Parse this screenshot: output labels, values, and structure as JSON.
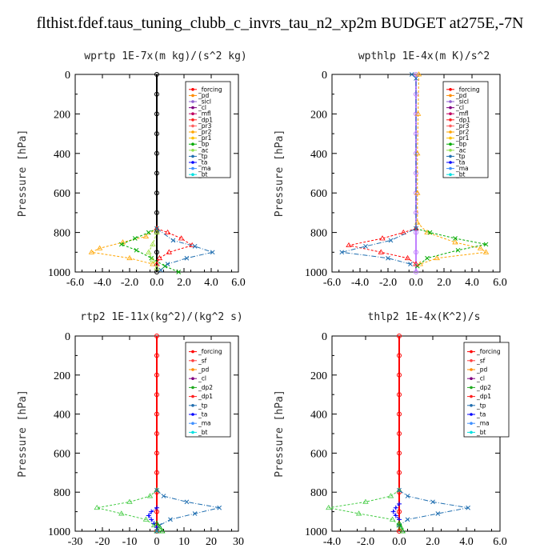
{
  "figure_title": "flthist.fdef.taus_tuning_clubb_c_invrs_tau_n2_xp2m  BUDGET at275E,-7N",
  "chart_data": [
    {
      "type": "line",
      "title": "wprtp  1E-7x(m kg)/(s^2 kg)",
      "ylabel": "Pressure [hPa]",
      "ylim": [
        1000,
        0
      ],
      "xlim": [
        -6,
        6
      ],
      "xticks": [
        "-6.0",
        "-4.0",
        "-2.0",
        "0.0",
        "2.0",
        "4.0",
        "6.0"
      ],
      "yticks": [
        "0",
        "200",
        "400",
        "600",
        "800",
        "1000"
      ],
      "legend": [
        "_forcing",
        "_pd",
        "_sicl",
        "_cl",
        "_mfl",
        "_dp1",
        "_pr3",
        "_pr2",
        "_pr1",
        "_bp",
        "_ac",
        "_tp",
        "_ta",
        "_ma",
        "_bt"
      ],
      "series": [
        {
          "name": "_forcing",
          "color": "#000000",
          "y": [
            0,
            100,
            200,
            300,
            400,
            500,
            600,
            700,
            800,
            900,
            1000
          ],
          "x": [
            0,
            0,
            0,
            0,
            0,
            0,
            0,
            0,
            0,
            0,
            0
          ]
        },
        {
          "name": "_pr1",
          "color": "#ffa500",
          "y": [
            780,
            820,
            850,
            880,
            900,
            930,
            960
          ],
          "x": [
            0,
            -0.8,
            -2.5,
            -4.2,
            -4.8,
            -2.0,
            -0.3
          ]
        },
        {
          "name": "_bp",
          "color": "#00aa00",
          "y": [
            780,
            800,
            830,
            860,
            890,
            930,
            970,
            1000
          ],
          "x": [
            0,
            -0.6,
            -1.6,
            -2.6,
            -1.5,
            -0.4,
            0.6,
            1.6
          ]
        },
        {
          "name": "_dp1",
          "color": "#ff0000",
          "y": [
            780,
            800,
            830,
            865,
            900,
            930,
            960
          ],
          "x": [
            0,
            0.8,
            1.8,
            2.6,
            0.9,
            0.2,
            0
          ]
        },
        {
          "name": "_tp",
          "color": "#1f6eb0",
          "y": [
            780,
            840,
            870,
            900,
            930,
            960,
            990
          ],
          "x": [
            0,
            1.2,
            2.8,
            4.1,
            2.2,
            0.8,
            0.3
          ]
        },
        {
          "name": "_ac",
          "color": "#a0e040",
          "y": [
            800,
            860,
            900,
            940,
            980
          ],
          "x": [
            0,
            -0.3,
            -0.6,
            -0.3,
            0
          ]
        }
      ]
    },
    {
      "type": "line",
      "title": "wpthlp  1E-4x(m K)/s^2",
      "ylabel": "Pressure [hPa]",
      "ylim": [
        1000,
        0
      ],
      "xlim": [
        -6,
        6
      ],
      "xticks": [
        "-6.0",
        "-4.0",
        "-2.0",
        "0.0",
        "2.0",
        "4.0",
        "6.0"
      ],
      "yticks": [
        "0",
        "200",
        "400",
        "600",
        "800",
        "1000"
      ],
      "legend": [
        "_forcing",
        "_pd",
        "_sicl",
        "_cl",
        "_mfl",
        "_dp1",
        "_pr3",
        "_pr2",
        "_pr1",
        "_bp",
        "_ac",
        "_tp",
        "_ta",
        "_ma",
        "_bt"
      ],
      "series": [
        {
          "name": "_forcing",
          "color": "#c080ff",
          "y": [
            0,
            100,
            200,
            300,
            400,
            500,
            600,
            700,
            800,
            900,
            1000
          ],
          "x": [
            0,
            0,
            0,
            0,
            0,
            0,
            0,
            0,
            0,
            0,
            0
          ]
        },
        {
          "name": "_pr1",
          "color": "#ffa500",
          "y": [
            0,
            200,
            400,
            600,
            750,
            800,
            850,
            880,
            900,
            930,
            960
          ],
          "x": [
            0.2,
            0.15,
            0.1,
            0.1,
            0.1,
            0.8,
            2.8,
            4.6,
            5.0,
            1.5,
            0.3
          ]
        },
        {
          "name": "_bp",
          "color": "#00aa00",
          "y": [
            780,
            800,
            830,
            860,
            890,
            930,
            970
          ],
          "x": [
            0,
            1.0,
            2.8,
            5.0,
            3.0,
            0.8,
            0.1
          ]
        },
        {
          "name": "_dp1",
          "color": "#ff0000",
          "y": [
            780,
            800,
            830,
            865,
            900,
            930,
            960
          ],
          "x": [
            0,
            -0.9,
            -2.4,
            -4.8,
            -2.5,
            -0.6,
            0
          ]
        },
        {
          "name": "_tp",
          "color": "#1f6eb0",
          "y": [
            0,
            20,
            780,
            840,
            870,
            900,
            930,
            960
          ],
          "x": [
            -0.3,
            0,
            0,
            -1.8,
            -3.6,
            -5.3,
            -2.0,
            -0.4
          ]
        }
      ]
    },
    {
      "type": "line",
      "title": "rtp2  1E-11x(kg^2)/(kg^2 s)",
      "ylabel": "Pressure [hPa]",
      "ylim": [
        1000,
        0
      ],
      "xlim": [
        -30,
        30
      ],
      "xticks": [
        "-30",
        "-20",
        "-10",
        "0",
        "10",
        "20",
        "30"
      ],
      "yticks": [
        "0",
        "200",
        "400",
        "600",
        "800",
        "1000"
      ],
      "legend": [
        "_forcing",
        "_sf",
        "_pd",
        "_cl",
        "_dp2",
        "_dp1",
        "_tp",
        "_ta",
        "_ma",
        "_bt"
      ],
      "series": [
        {
          "name": "_forcing",
          "color": "#ff0000",
          "y": [
            0,
            100,
            200,
            300,
            400,
            500,
            600,
            700,
            800,
            900,
            1000
          ],
          "x": [
            0,
            0,
            0,
            0,
            0,
            0,
            0,
            0,
            0,
            0,
            0
          ]
        },
        {
          "name": "_dp1",
          "color": "#44cc44",
          "y": [
            790,
            820,
            850,
            880,
            910,
            940,
            970,
            1000
          ],
          "x": [
            0,
            -2.5,
            -10,
            -22,
            -13,
            -4,
            -1,
            0
          ]
        },
        {
          "name": "_tp",
          "color": "#1f6eb0",
          "y": [
            790,
            820,
            850,
            880,
            910,
            940,
            970,
            1000
          ],
          "x": [
            0,
            2.5,
            11,
            23,
            14,
            5,
            1,
            0
          ]
        },
        {
          "name": "_ta",
          "color": "#0000ff",
          "y": [
            880,
            900,
            920,
            940,
            960,
            980
          ],
          "x": [
            0,
            -2,
            -3,
            -2,
            -1,
            0
          ]
        },
        {
          "name": "_dp2",
          "color": "#00aa00",
          "y": [
            960,
            980,
            1000
          ],
          "x": [
            0,
            1,
            2
          ]
        }
      ]
    },
    {
      "type": "line",
      "title": "thlp2  1E-4x(K^2)/s",
      "ylabel": "Pressure [hPa]",
      "ylim": [
        1000,
        0
      ],
      "xlim": [
        -4,
        6
      ],
      "xticks": [
        "-4.0",
        "-2.0",
        "0.0",
        "2.0",
        "4.0",
        "6.0"
      ],
      "yticks": [
        "0",
        "200",
        "400",
        "600",
        "800",
        "1000"
      ],
      "legend": [
        "_forcing",
        "_sf",
        "_pd",
        "_cl",
        "_dp2",
        "_dp1",
        "_tp",
        "_ta",
        "_ma",
        "_bt"
      ],
      "series": [
        {
          "name": "_forcing",
          "color": "#ff0000",
          "y": [
            0,
            100,
            200,
            300,
            400,
            500,
            600,
            700,
            800,
            900,
            1000
          ],
          "x": [
            0,
            0,
            0,
            0,
            0,
            0,
            0,
            0,
            0,
            0,
            0
          ]
        },
        {
          "name": "_dp1",
          "color": "#44cc44",
          "y": [
            790,
            820,
            850,
            880,
            910,
            940,
            970
          ],
          "x": [
            0,
            -0.5,
            -2.0,
            -4.2,
            -2.4,
            -0.4,
            0
          ]
        },
        {
          "name": "_tp",
          "color": "#1f6eb0",
          "y": [
            790,
            820,
            850,
            880,
            910,
            940,
            970
          ],
          "x": [
            0,
            0.5,
            2.0,
            4.1,
            2.3,
            0.5,
            0
          ]
        },
        {
          "name": "_ta",
          "color": "#0000ff",
          "y": [
            860,
            880,
            900,
            920,
            940
          ],
          "x": [
            0,
            -0.2,
            -0.35,
            -0.2,
            0
          ]
        },
        {
          "name": "_dp2",
          "color": "#00aa00",
          "y": [
            960,
            980,
            1000
          ],
          "x": [
            0,
            0.1,
            0.2
          ]
        }
      ]
    }
  ],
  "legend_colors": {
    "_forcing": "#ff0000",
    "_pd": "#ff8c00",
    "_sicl": "#9060d0",
    "_cl": "#800080",
    "_mfl": "#c00060",
    "_dp1": "#ff2020",
    "_pr3": "#ff6060",
    "_pr2": "#ffa500",
    "_pr1": "#ffc000",
    "_bp": "#00aa00",
    "_ac": "#90e050",
    "_tp": "#1f6eb0",
    "_ta": "#0000ff",
    "_ma": "#4090ff",
    "_bt": "#00e0e0",
    "_sf": "#ff4040",
    "_dp2": "#20aa20"
  }
}
